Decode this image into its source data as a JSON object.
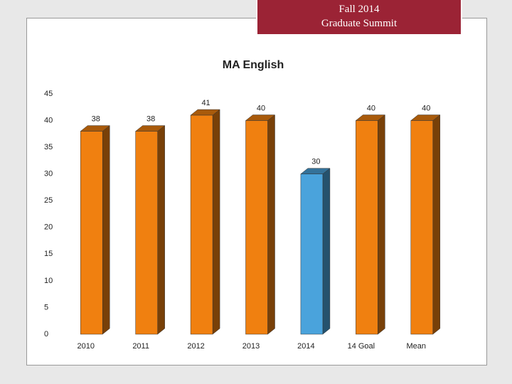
{
  "header": {
    "lines": [
      "Fall 2014",
      "Graduate Summit"
    ]
  },
  "chart_data": {
    "type": "bar3d",
    "title": "MA English",
    "categories": [
      "2010",
      "2011",
      "2012",
      "2013",
      "2014",
      "14 Goal",
      "Mean"
    ],
    "values": [
      38,
      38,
      41,
      40,
      30,
      40,
      40
    ],
    "colors": [
      "#f08010",
      "#f08010",
      "#f08010",
      "#f08010",
      "#4aa3dc",
      "#f08010",
      "#f08010"
    ],
    "ylim": [
      0,
      45
    ],
    "yticks": [
      0,
      5,
      10,
      15,
      20,
      25,
      30,
      35,
      40,
      45
    ],
    "grid": false
  }
}
